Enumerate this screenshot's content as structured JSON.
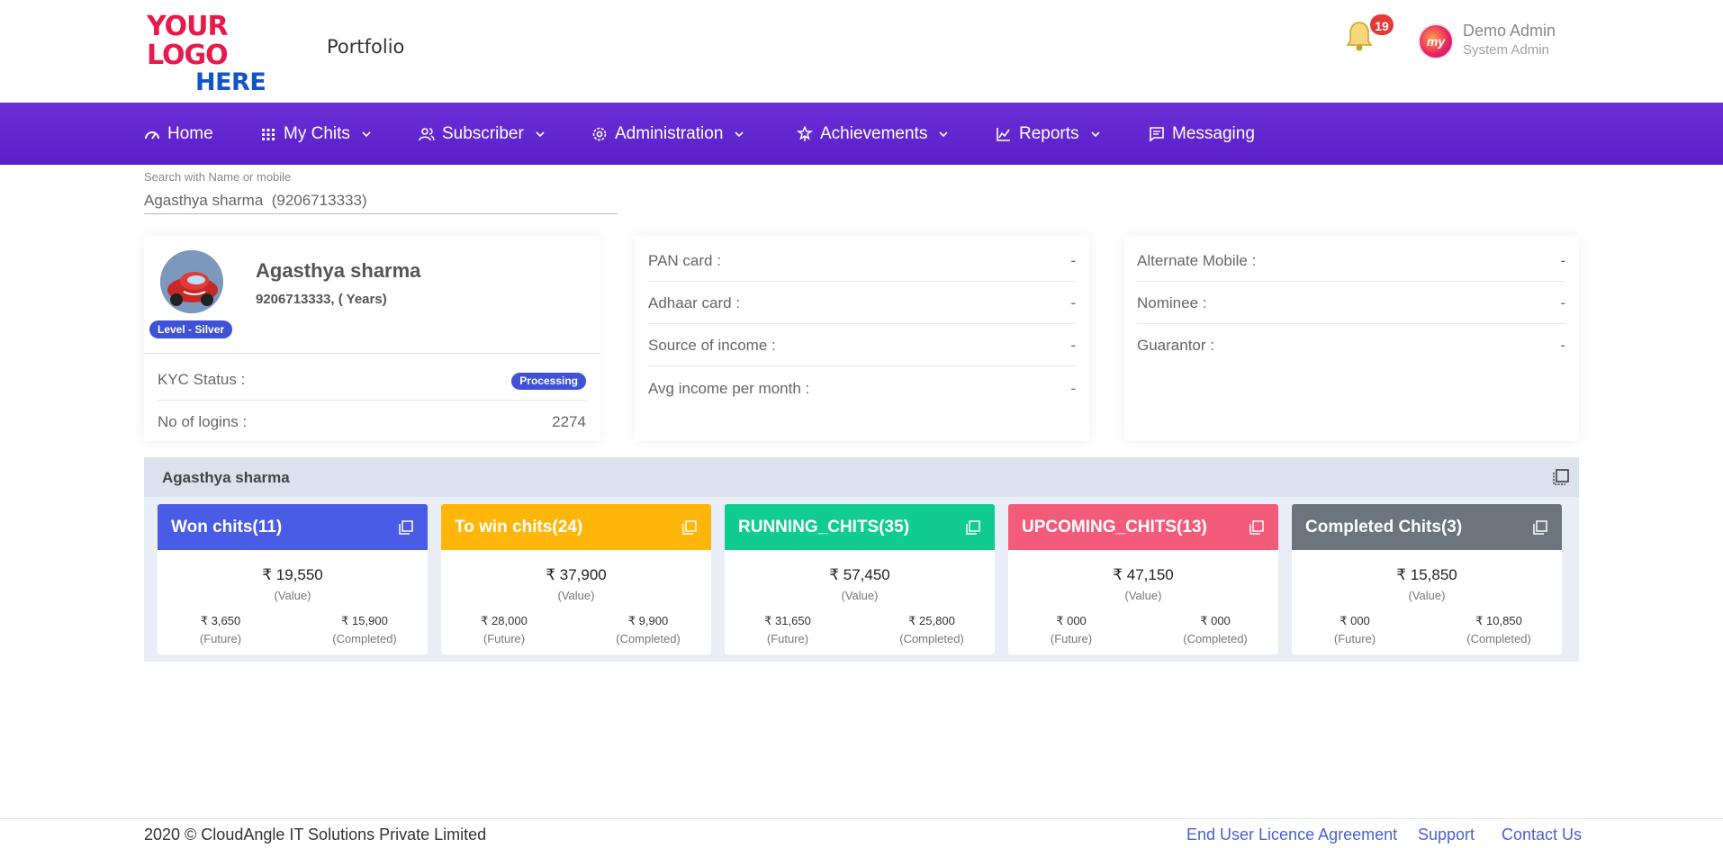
{
  "header": {
    "logo_line1": "YOUR LOGO",
    "logo_line2": "HERE",
    "page_title": "Portfolio",
    "notification_count": "19",
    "user_name": "Demo Admin",
    "user_role": "System Admin",
    "avatar_text": "my"
  },
  "nav": {
    "items": [
      {
        "label": "Home",
        "icon": "dashboard-gauge-icon",
        "has_dropdown": false
      },
      {
        "label": "My Chits",
        "icon": "grid-dots-icon",
        "has_dropdown": true
      },
      {
        "label": "Subscriber",
        "icon": "users-icon",
        "has_dropdown": true
      },
      {
        "label": "Administration",
        "icon": "gear-icon",
        "has_dropdown": true
      },
      {
        "label": "Achievements",
        "icon": "award-icon",
        "has_dropdown": true
      },
      {
        "label": "Reports",
        "icon": "chart-icon",
        "has_dropdown": true
      },
      {
        "label": "Messaging",
        "icon": "message-icon",
        "has_dropdown": false
      }
    ],
    "bg_color": "#5e22cf"
  },
  "search": {
    "label": "Search with Name or mobile",
    "value": "Agasthya sharma  (9206713333)"
  },
  "profile": {
    "name": "Agasthya sharma",
    "subtitle": "9206713333, ( Years)",
    "level": "Level - Silver",
    "kyc_label": "KYC Status :",
    "kyc_value": "Processing",
    "logins_label": "No of logins :",
    "logins_value": "2274"
  },
  "info1": {
    "rows": [
      {
        "label": "PAN card :",
        "value": "-"
      },
      {
        "label": "Adhaar card :",
        "value": "-"
      },
      {
        "label": "Source of income :",
        "value": "-"
      },
      {
        "label": "Avg income per month :",
        "value": "-"
      }
    ]
  },
  "info2": {
    "rows": [
      {
        "label": "Alternate Mobile :",
        "value": "-"
      },
      {
        "label": "Nominee :",
        "value": "-"
      },
      {
        "label": "Guarantor :",
        "value": "-"
      }
    ]
  },
  "summary": {
    "title": "Agasthya sharma",
    "cards": [
      {
        "title": "Won chits(11)",
        "color": "#4a5ce6",
        "value": "₹ 19,550",
        "value_label": "(Value)",
        "future": "₹ 3,650",
        "future_label": "(Future)",
        "completed": "₹ 15,900",
        "completed_label": "(Completed)"
      },
      {
        "title": "To win chits(24)",
        "color": "#ffb60a",
        "value": "₹ 37,900",
        "value_label": "(Value)",
        "future": "₹ 28,000",
        "future_label": "(Future)",
        "completed": "₹ 9,900",
        "completed_label": "(Completed)"
      },
      {
        "title": "RUNNING_CHITS(35)",
        "color": "#10cc8f",
        "value": "₹ 57,450",
        "value_label": "(Value)",
        "future": "₹ 31,650",
        "future_label": "(Future)",
        "completed": "₹ 25,800",
        "completed_label": "(Completed)"
      },
      {
        "title": "UPCOMING_CHITS(13)",
        "color": "#f45b7a",
        "value": "₹ 47,150",
        "value_label": "(Value)",
        "future": "₹ 000",
        "future_label": "(Future)",
        "completed": "₹ 000",
        "completed_label": "(Completed)"
      },
      {
        "title": "Completed Chits(3)",
        "color": "#6c757d",
        "value": "₹ 15,850",
        "value_label": "(Value)",
        "future": "₹ 000",
        "future_label": "(Future)",
        "completed": "₹ 10,850",
        "completed_label": "(Completed)"
      }
    ]
  },
  "footer": {
    "copyright": "2020 © CloudAngle IT Solutions Private Limited",
    "links": [
      "End User Licence Agreement",
      "Support",
      "Contact Us"
    ],
    "link_color": "#4a60d6"
  }
}
